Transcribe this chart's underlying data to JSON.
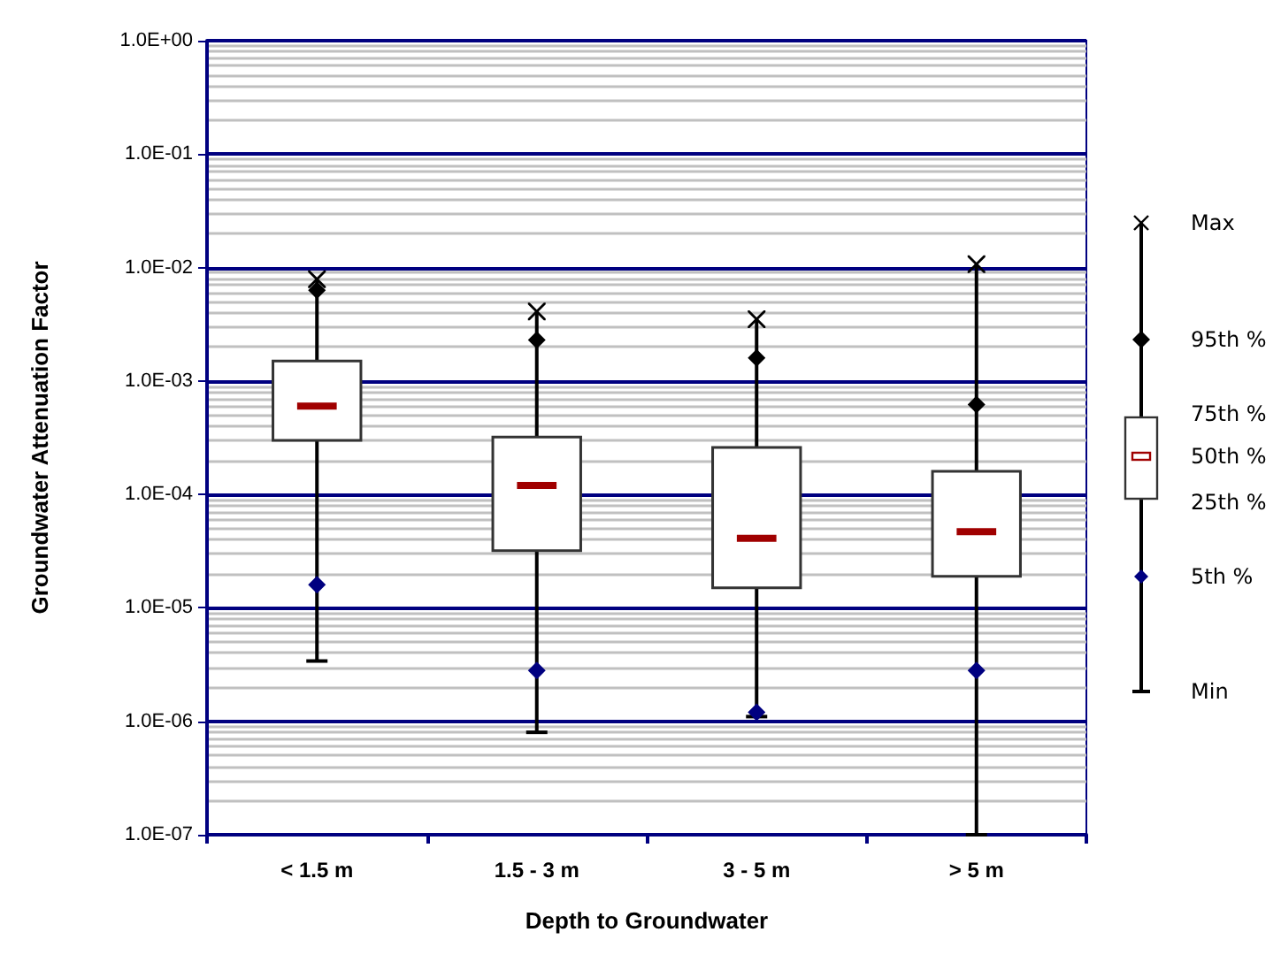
{
  "chart_data": {
    "type": "box",
    "xlabel": "Depth to Groundwater",
    "ylabel": "Groundwater Attenuation Factor",
    "categories": [
      "< 1.5 m",
      "1.5 - 3 m",
      "3 - 5 m",
      "> 5 m"
    ],
    "log": "y",
    "grid": true,
    "legend": "right",
    "ylim": [
      1e-07,
      1
    ],
    "yticks": [
      {
        "value": 1e-07,
        "label": "1.0E-07"
      },
      {
        "value": 1e-06,
        "label": "1.0E-06"
      },
      {
        "value": 1e-05,
        "label": "1.0E-05"
      },
      {
        "value": 0.0001,
        "label": "1.0E-04"
      },
      {
        "value": 0.001,
        "label": "1.0E-03"
      },
      {
        "value": 0.01,
        "label": "1.0E-02"
      },
      {
        "value": 0.1,
        "label": "1.0E-01"
      },
      {
        "value": 1,
        "label": "1.0E+00"
      }
    ],
    "annotations": [
      "75th %",
      "50th %",
      "25th %",
      "Min"
    ],
    "series": [
      {
        "color": "#ffffff",
        "boxes": [
          {
            "low": 3.4e-06,
            "q1": 0.0003,
            "median": 0.0006,
            "q3": 0.0015,
            "high": 0.0079
          },
          {
            "low": 8e-07,
            "q1": 3.2e-05,
            "median": 0.00012,
            "q3": 0.00032,
            "high": 0.0041
          },
          {
            "low": 1.1e-06,
            "q1": 1.5e-05,
            "median": 4.1e-05,
            "q3": 0.00026,
            "high": 0.0035
          },
          {
            "low": 1e-07,
            "q1": 1.9e-05,
            "median": 4.7e-05,
            "q3": 0.00016,
            "high": 0.0107
          }
        ]
      },
      {
        "type": "scatter",
        "name": "Max",
        "color": "#000000",
        "marker": "cross",
        "x": [
          "< 1.5 m",
          "1.5 - 3 m",
          "3 - 5 m",
          "> 5 m"
        ],
        "values": [
          0.0079,
          0.0041,
          0.0035,
          0.0107
        ]
      },
      {
        "type": "scatter",
        "name": "95th %",
        "color": "#000000",
        "marker": "diamond",
        "x": [
          "< 1.5 m",
          "1.5 - 3 m",
          "3 - 5 m",
          "> 5 m"
        ],
        "values": [
          0.0063,
          0.0023,
          0.0016,
          0.00062
        ]
      },
      {
        "type": "scatter",
        "name": "5th %",
        "color": "#000080",
        "marker": "diamond",
        "x": [
          "< 1.5 m",
          "1.5 - 3 m",
          "3 - 5 m",
          "> 5 m"
        ],
        "values": [
          1.6e-05,
          2.8e-06,
          1.2e-06,
          2.8e-06
        ]
      }
    ]
  }
}
